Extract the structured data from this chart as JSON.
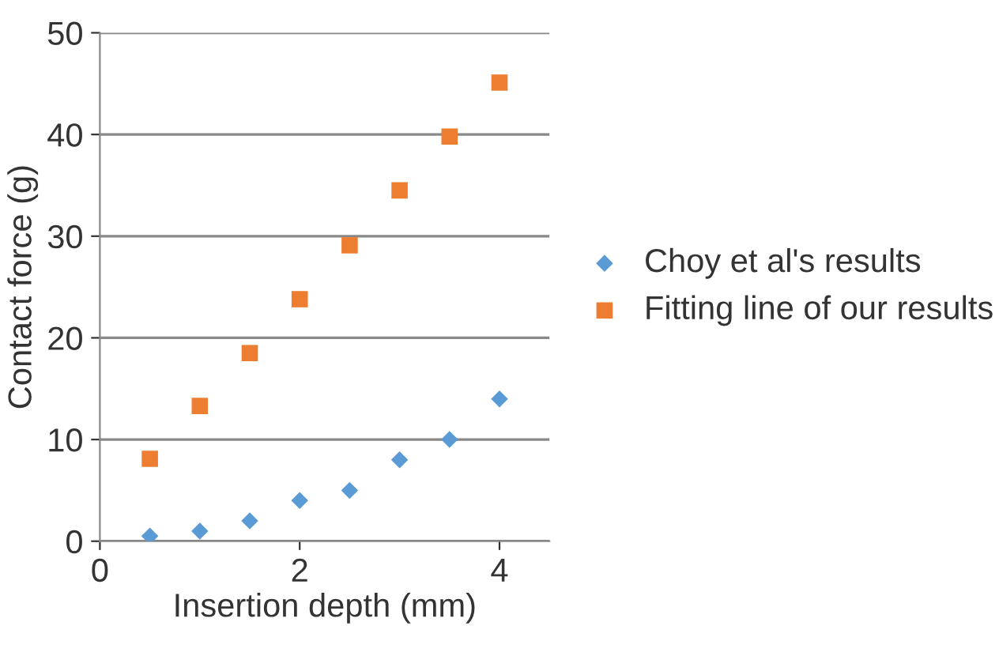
{
  "chart_data": {
    "type": "scatter",
    "xlabel": "Insertion depth (mm)",
    "ylabel": "Contact force (g)",
    "x": [
      0.5,
      1,
      1.5,
      2,
      2.5,
      3,
      3.5,
      4
    ],
    "series": [
      {
        "name": "Choy et al's results",
        "color": "#5b9bd5",
        "marker": "diamond",
        "values": [
          0.5,
          1,
          2,
          4,
          5,
          8,
          10,
          14
        ]
      },
      {
        "name": "Fitting line of our results",
        "color": "#ed7d31",
        "marker": "square",
        "values": [
          8.1,
          13.3,
          18.5,
          23.8,
          29.1,
          34.5,
          39.8,
          45.1
        ]
      }
    ],
    "xlim": [
      0,
      4.5
    ],
    "xticks": [
      0,
      2,
      4
    ],
    "ylim": [
      0,
      50
    ],
    "yticks": [
      0,
      10,
      20,
      30,
      40,
      50
    ],
    "grid": "y",
    "legend": "right"
  }
}
